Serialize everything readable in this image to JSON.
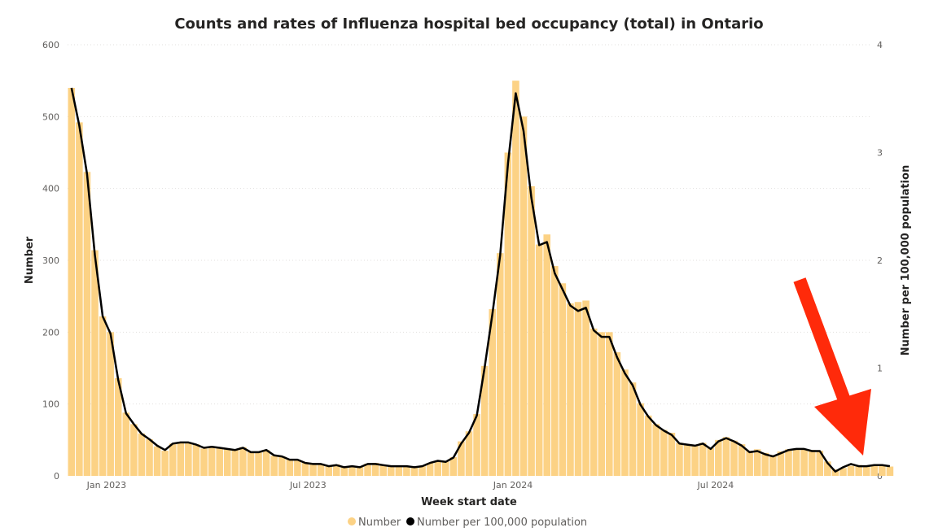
{
  "chart_data": {
    "type": "bar",
    "title": "Counts and rates of Influenza hospital bed occupancy (total) in Ontario",
    "xlabel": "Week start date",
    "ylabel": "Number",
    "y2label": "Number per 100,000 population",
    "ylim": [
      0,
      600
    ],
    "y2lim": [
      0,
      4
    ],
    "yticks": [
      0,
      100,
      200,
      300,
      400,
      500,
      600
    ],
    "y2ticks": [
      0,
      1,
      2,
      3,
      4
    ],
    "xrange": [
      "2022-11-27",
      "2024-11-17"
    ],
    "xticks": [
      {
        "date": "2023-01-01",
        "label": "Jan 2023"
      },
      {
        "date": "2023-07-01",
        "label": "Jul 2023"
      },
      {
        "date": "2024-01-01",
        "label": "Jan 2024"
      },
      {
        "date": "2024-07-01",
        "label": "Jul 2024"
      }
    ],
    "grid": true,
    "legend_position": "bottom-center",
    "colors": {
      "bars": "#fcd285",
      "line": "#000000"
    },
    "start_week": "2022-11-27",
    "series": [
      {
        "name": "Number",
        "type": "bar",
        "values": [
          540,
          492,
          423,
          314,
          222,
          200,
          136,
          88,
          72,
          59,
          51,
          41,
          35,
          45,
          47,
          46,
          44,
          38,
          41,
          39,
          37,
          36,
          40,
          33,
          34,
          36,
          28,
          27,
          23,
          22,
          18,
          17,
          16,
          14,
          16,
          13,
          14,
          13,
          17,
          18,
          15,
          13,
          13,
          14,
          12,
          14,
          18,
          21,
          20,
          26,
          48,
          62,
          86,
          153,
          232,
          310,
          450,
          550,
          500,
          403,
          322,
          336,
          292,
          268,
          240,
          242,
          244,
          205,
          200,
          200,
          172,
          148,
          130,
          101,
          84,
          72,
          64,
          60,
          46,
          44,
          42,
          46,
          39,
          50,
          54,
          49,
          44,
          35,
          37,
          32,
          29,
          34,
          37,
          37,
          37,
          36,
          35,
          20,
          9,
          11,
          14,
          15,
          14,
          15,
          14,
          13
        ],
        "legend": "Number"
      },
      {
        "name": "Number per 100,000 population",
        "type": "line",
        "axis": "right",
        "values": [
          3.6,
          3.25,
          2.8,
          2.05,
          1.48,
          1.32,
          0.89,
          0.58,
          0.48,
          0.39,
          0.34,
          0.28,
          0.24,
          0.3,
          0.31,
          0.31,
          0.29,
          0.26,
          0.27,
          0.26,
          0.25,
          0.24,
          0.26,
          0.22,
          0.22,
          0.24,
          0.19,
          0.18,
          0.15,
          0.15,
          0.12,
          0.11,
          0.11,
          0.09,
          0.1,
          0.08,
          0.09,
          0.08,
          0.11,
          0.11,
          0.1,
          0.09,
          0.09,
          0.09,
          0.08,
          0.09,
          0.12,
          0.14,
          0.13,
          0.17,
          0.3,
          0.4,
          0.56,
          1.0,
          1.5,
          2.05,
          2.9,
          3.55,
          3.2,
          2.58,
          2.14,
          2.17,
          1.88,
          1.73,
          1.58,
          1.53,
          1.56,
          1.35,
          1.29,
          1.29,
          1.1,
          0.95,
          0.84,
          0.66,
          0.55,
          0.47,
          0.42,
          0.38,
          0.3,
          0.29,
          0.28,
          0.3,
          0.25,
          0.32,
          0.35,
          0.32,
          0.28,
          0.22,
          0.23,
          0.2,
          0.18,
          0.21,
          0.24,
          0.25,
          0.25,
          0.23,
          0.23,
          0.12,
          0.04,
          0.08,
          0.11,
          0.09,
          0.09,
          0.1,
          0.1,
          0.09
        ],
        "legend": "Number per 100,000 population"
      }
    ]
  }
}
